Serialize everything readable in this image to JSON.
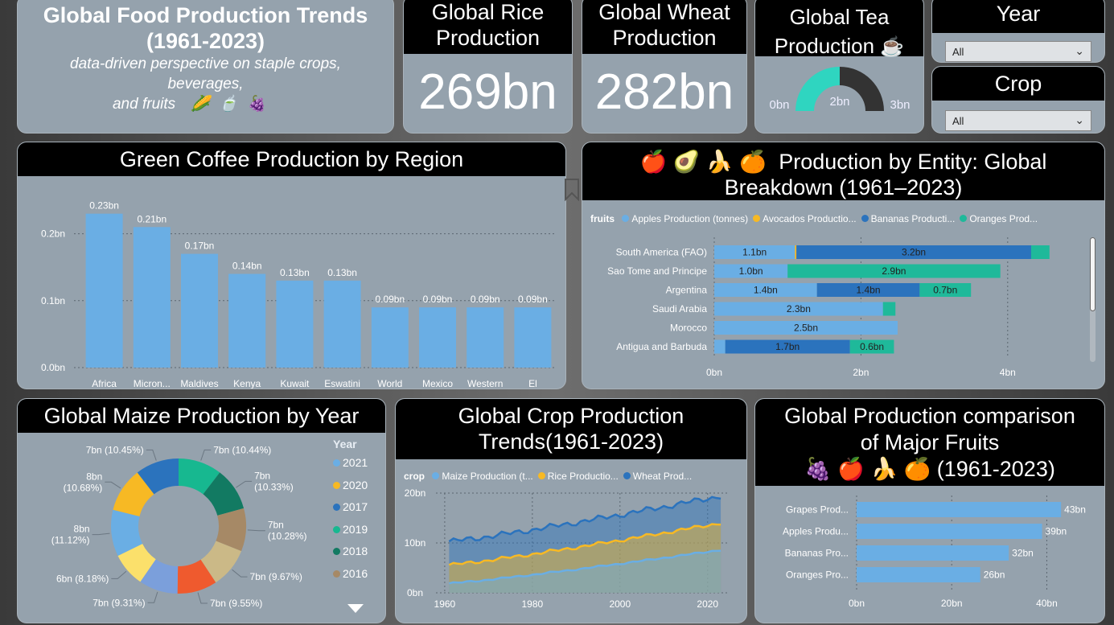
{
  "title_card": {
    "title": "Global Food Production Trends (1961-2023)",
    "subtitle_l1": "data-driven perspective on staple crops, beverages,",
    "subtitle_l2": "and fruits",
    "icons": [
      "corn-icon",
      "tea-icon",
      "grapes-icon"
    ]
  },
  "rice_card": {
    "title": "Global Rice Production",
    "value": "269bn"
  },
  "wheat_card": {
    "title": "Global Wheat Production",
    "value": "282bn"
  },
  "tea_card": {
    "title": "Global Tea Production",
    "gauge": {
      "min_label": "0bn",
      "mid_label": "2bn",
      "max_label": "3bn",
      "value": 1.5,
      "max": 3
    },
    "colors": {
      "fill": "#2fd5c0",
      "track": "#333333"
    }
  },
  "year_slicer": {
    "title": "Year",
    "selected": "All"
  },
  "crop_slicer": {
    "title": "Crop",
    "selected": "All"
  },
  "coffee_chart": {
    "title": "Green Coffee Production by Region",
    "chart_data": {
      "type": "bar",
      "categories": [
        "Africa (FAO)",
        "Micron... (FAO)",
        "Maldives",
        "Kenya",
        "Kuwait",
        "Eswatini",
        "World",
        "Mexico",
        "Western Africa (FAO)",
        "El Salvador"
      ],
      "values": [
        0.23,
        0.21,
        0.17,
        0.14,
        0.13,
        0.13,
        0.09,
        0.09,
        0.09,
        0.09
      ],
      "value_labels": [
        "0.23bn",
        "0.21bn",
        "0.17bn",
        "0.14bn",
        "0.13bn",
        "0.13bn",
        "0.09bn",
        "0.09bn",
        "0.09bn",
        "0.09bn"
      ],
      "yticks": [
        0,
        0.1,
        0.2
      ],
      "ytick_labels": [
        "0.0bn",
        "0.1bn",
        "0.2bn"
      ],
      "ylim": [
        0,
        0.25
      ],
      "color": "#6aaee4"
    }
  },
  "entity_chart": {
    "title_l1": "Production by Entity: Global",
    "title_l2": "Breakdown (1961–2023)",
    "icons": [
      "apple-icon",
      "avocado-icon",
      "banana-icon",
      "orange-icon"
    ],
    "legend_title": "fruits",
    "chart_data": {
      "type": "bar",
      "stacked": true,
      "categories": [
        "South America (FAO)",
        "Sao Tome and Principe",
        "Argentina",
        "Saudi Arabia",
        "Morocco",
        "Antigua and Barbuda"
      ],
      "series": [
        {
          "name": "Apples Production (tonnes)",
          "color": "#6aaee4",
          "values": [
            1.1,
            1.0,
            1.4,
            2.3,
            2.5,
            0.15
          ],
          "labels": [
            "1.1bn",
            "1.0bn",
            "1.4bn",
            "2.3bn",
            "2.5bn",
            ""
          ]
        },
        {
          "name": "Avocados Productio...",
          "color": "#f7b924",
          "values": [
            0.02,
            0,
            0,
            0,
            0,
            0
          ],
          "labels": [
            "",
            "",
            "",
            "",
            "",
            ""
          ]
        },
        {
          "name": "Bananas  Producti...",
          "color": "#2b73bd",
          "values": [
            3.2,
            0,
            1.4,
            0,
            0,
            1.7
          ],
          "labels": [
            "3.2bn",
            "",
            "1.4bn",
            "",
            "",
            "1.7bn"
          ]
        },
        {
          "name": "Oranges  Prod...",
          "color": "#1fb99a",
          "values": [
            0.25,
            2.9,
            0.7,
            0.17,
            0,
            0.6
          ],
          "labels": [
            "",
            "2.9bn",
            "0.7bn",
            "",
            "",
            "0.6bn"
          ]
        }
      ],
      "xticks": [
        0,
        2,
        4
      ],
      "xtick_labels": [
        "0bn",
        "2bn",
        "4bn"
      ],
      "xlim": [
        0,
        5
      ]
    }
  },
  "maize_chart": {
    "title": "Global Maize Production by Year",
    "legend_title": "Year",
    "chart_data": {
      "type": "pie",
      "donut": true,
      "slices": [
        {
          "year": "2021",
          "value": 10.44,
          "label": "7bn (10.44%)",
          "color": "#17b890"
        },
        {
          "year": "2020",
          "value": 10.33,
          "label": "7bn\n(10.33%)",
          "color": "#127a62"
        },
        {
          "year": "2017",
          "value": 10.28,
          "label": "7bn\n(10.28%)",
          "color": "#a68966"
        },
        {
          "year": "2019",
          "value": 9.67,
          "label": "7bn (9.67%)",
          "color": "#cbb987"
        },
        {
          "year": "2018",
          "value": 9.55,
          "label": "7bn (9.55%)",
          "color": "#ef5a2e"
        },
        {
          "year": "2016",
          "value": 9.31,
          "label": "7bn (9.31%)",
          "color": "#7b9fdb"
        },
        {
          "year": "",
          "value": 8.18,
          "label": "6bn (8.18%)",
          "color": "#fbe06b"
        },
        {
          "year": "",
          "value": 11.12,
          "label": "8bn\n(11.12%)",
          "color": "#6aaee4"
        },
        {
          "year": "",
          "value": 10.68,
          "label": "8bn\n(10.68%)",
          "color": "#f7b924"
        },
        {
          "year": "",
          "value": 10.45,
          "label": "7bn (10.45%)",
          "color": "#2b73bd"
        }
      ],
      "legend": [
        {
          "year": "2021",
          "color": "#6aaee4"
        },
        {
          "year": "2020",
          "color": "#f7b924"
        },
        {
          "year": "2017",
          "color": "#2b73bd"
        },
        {
          "year": "2019",
          "color": "#17b890"
        },
        {
          "year": "2018",
          "color": "#127a62"
        },
        {
          "year": "2016",
          "color": "#a68966"
        }
      ]
    }
  },
  "crop_trend_chart": {
    "title_l1": "Global Crop Production",
    "title_l2": "Trends(1961-2023)",
    "legend_title": "crop",
    "chart_data": {
      "type": "area",
      "stacked": true,
      "series": [
        {
          "name": "Maize Production (t...",
          "color": "#6aaee4",
          "start": 1.9,
          "end": 8.6
        },
        {
          "name": "Rice  Productio...",
          "color": "#f7b924",
          "start": 5.6,
          "end": 14.0
        },
        {
          "name": "Wheat Prod...",
          "color": "#2b73bd",
          "start": 10.3,
          "end": 19.4
        }
      ],
      "xlim": [
        1958,
        2025
      ],
      "xticks": [
        1960,
        1980,
        2000,
        2020
      ],
      "xtick_labels": [
        "1960",
        "1980",
        "2000",
        "2020"
      ],
      "ylim": [
        0,
        20
      ],
      "yticks": [
        0,
        10,
        20
      ],
      "ytick_labels": [
        "0bn",
        "10bn",
        "20bn"
      ]
    }
  },
  "fruit_chart": {
    "title_l1": "Global Production comparison",
    "title_l2": "of Major Fruits",
    "title_l3": "(1961-2023)",
    "icons": [
      "grapes-icon",
      "apple-icon",
      "banana-icon",
      "orange-icon"
    ],
    "chart_data": {
      "type": "bar",
      "horizontal": true,
      "categories": [
        "Grapes Prod...",
        "Apples Produ...",
        "Bananas Pro...",
        "Oranges Pro..."
      ],
      "values": [
        43,
        39,
        32,
        26
      ],
      "value_labels": [
        "43bn",
        "39bn",
        "32bn",
        "26bn"
      ],
      "xticks": [
        0,
        20,
        40
      ],
      "xtick_labels": [
        "0bn",
        "20bn",
        "40bn"
      ],
      "xlim": [
        0,
        45
      ],
      "color": "#6aaee4"
    }
  }
}
